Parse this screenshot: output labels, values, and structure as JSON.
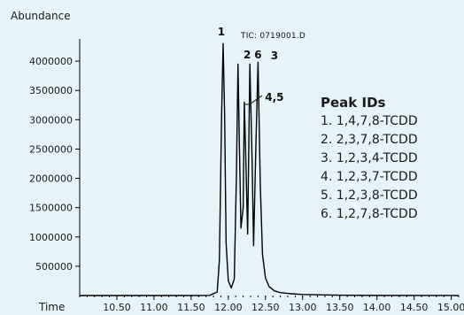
{
  "chart_data": {
    "type": "line",
    "ylabel": "Abundance",
    "xlabel": "Time",
    "trace_label": "TIC: 0719001.D",
    "xlim": [
      10.0,
      15.1
    ],
    "ylim": [
      0,
      4500000
    ],
    "y_ticks": [
      500000,
      1000000,
      1500000,
      2000000,
      2500000,
      3000000,
      3500000,
      4000000
    ],
    "y_tick_labels": [
      "500000",
      "1000000",
      "1500000",
      "2000000",
      "2500000",
      "3000000",
      "3500000",
      "4000000"
    ],
    "x_ticks": [
      10.5,
      11.0,
      11.5,
      12.0,
      12.5,
      13.0,
      13.5,
      14.0,
      14.5,
      15.0
    ],
    "x_tick_labels": [
      "10.50",
      "11.00",
      "11.50",
      "12.00",
      "12.50",
      "13.00",
      "13.50",
      "14.00",
      "14.50",
      "15.00"
    ],
    "series": [
      {
        "color": "#000000",
        "x": [
          10.0,
          11.5,
          11.75,
          11.85,
          11.88,
          11.91,
          11.93,
          11.95,
          11.97,
          12.0,
          12.04,
          12.08,
          12.11,
          12.13,
          12.15,
          12.17,
          12.2,
          12.215,
          12.23,
          12.26,
          12.29,
          12.32,
          12.34,
          12.37,
          12.4,
          12.43,
          12.46,
          12.5,
          12.55,
          12.62,
          12.7,
          12.85,
          13.0,
          13.3,
          13.6,
          14.0,
          15.1
        ],
        "y": [
          0,
          0,
          3000,
          60000,
          600000,
          3100000,
          4300000,
          3100000,
          900000,
          250000,
          130000,
          280000,
          2100000,
          3950000,
          2500000,
          1150000,
          1500000,
          3300000,
          2600000,
          1050000,
          3950000,
          2300000,
          850000,
          2500000,
          3980000,
          1900000,
          700000,
          300000,
          150000,
          80000,
          50000,
          30000,
          18000,
          10000,
          5000,
          2000,
          0
        ]
      }
    ],
    "peak_annotations": [
      {
        "label": "1",
        "x": 11.93
      },
      {
        "label": "2",
        "x": 12.29
      },
      {
        "label": "6",
        "x": 12.4
      },
      {
        "label": "3",
        "x": 12.62
      },
      {
        "label": "4,5",
        "x": 12.62
      }
    ],
    "legend": {
      "title": "Peak IDs",
      "placement": "right",
      "items": [
        "1. 1,4,7,8-TCDD",
        "2. 2,3,7,8-TCDD",
        "3. 1,2,3,4-TCDD",
        "4. 1,2,3,7-TCDD",
        "5. 1,2,3,8-TCDD",
        "6. 1,2,7,8-TCDD"
      ]
    }
  }
}
